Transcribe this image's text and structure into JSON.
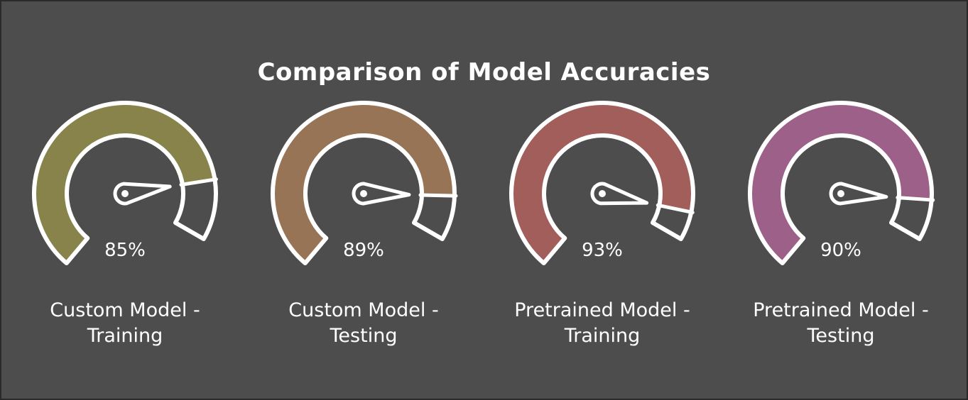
{
  "chart_data": {
    "type": "gauge",
    "title": "Comparison of Model Accuracies",
    "range": [
      0,
      100
    ],
    "unit": "%",
    "gauges": [
      {
        "label": "Custom Model - Training",
        "value": 85,
        "value_label": "85%",
        "color": "#8a864a"
      },
      {
        "label": "Custom Model - Testing",
        "value": 89,
        "value_label": "89%",
        "color": "#9c7656"
      },
      {
        "label": "Pretrained Model - Training",
        "value": 93,
        "value_label": "93%",
        "color": "#a65f5c"
      },
      {
        "label": "Pretrained Model - Testing",
        "value": 90,
        "value_label": "90%",
        "color": "#a1618b"
      }
    ]
  }
}
